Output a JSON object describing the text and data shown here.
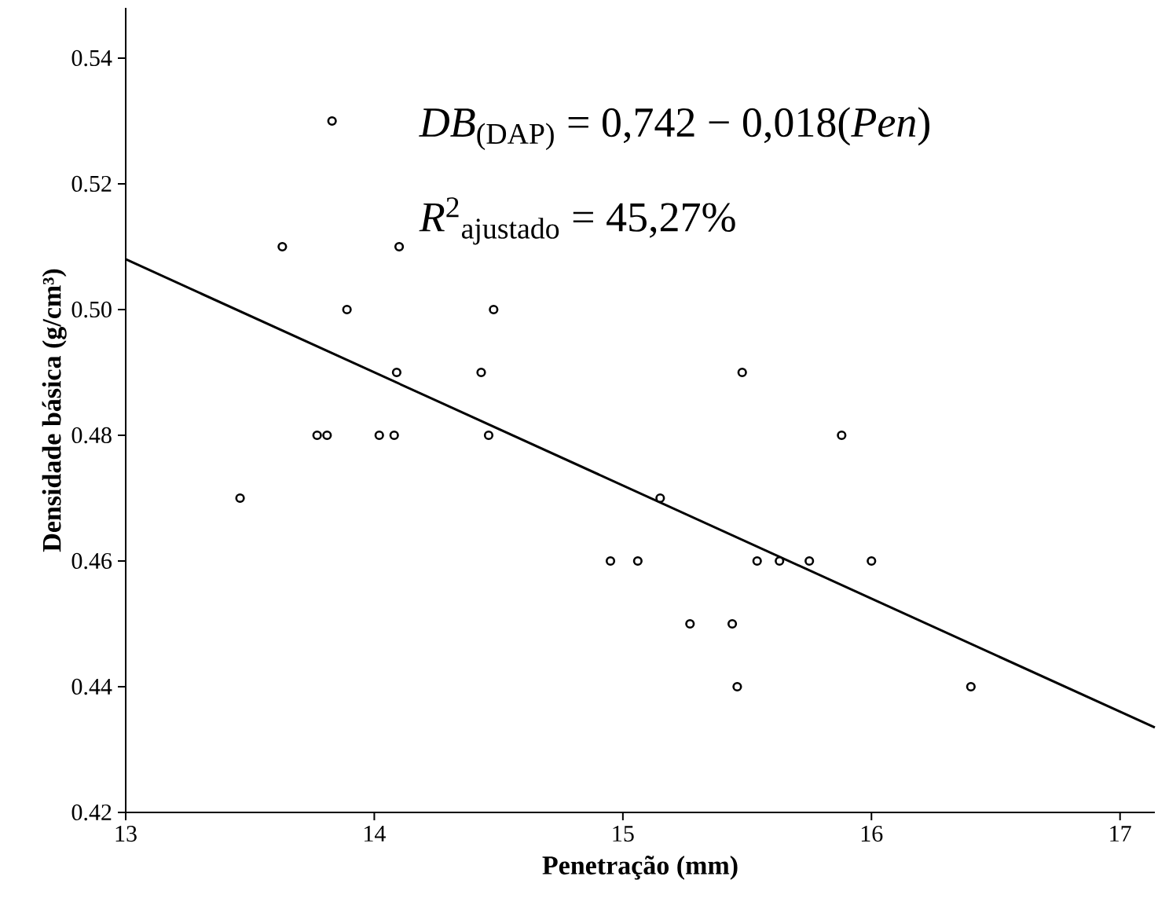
{
  "chart_data": {
    "type": "scatter",
    "xlabel": "Penetração (mm)",
    "ylabel": "Densidade básica (g/cm³)",
    "annotations": [
      "*DB*$_{(DAP)}$ = 0,742 − 0,018(*Pen*)",
      "*R*$^{2}$$_{ajustado}$ = 45,27%"
    ],
    "xlim": [
      13,
      17.14
    ],
    "ylim": [
      0.42,
      0.548
    ],
    "xticks": [
      13,
      14,
      15,
      16,
      17
    ],
    "yticks": [
      {
        "value": 0.42,
        "label": "0.42"
      },
      {
        "value": 0.44,
        "label": "0.44"
      },
      {
        "value": 0.46,
        "label": "0.46"
      },
      {
        "value": 0.48,
        "label": "0.48"
      },
      {
        "value": 0.5,
        "label": "0.50"
      },
      {
        "value": 0.52,
        "label": "0.52"
      },
      {
        "value": 0.54,
        "label": "0.54"
      }
    ],
    "grid": false,
    "series": [
      {
        "color": "#000000",
        "marker": "circle",
        "x": [
          13.83,
          13.63,
          14.1,
          13.89,
          14.48,
          14.09,
          14.43,
          13.77,
          13.81,
          14.02,
          14.08,
          14.46,
          13.46,
          14.95,
          15.48,
          15.88,
          15.15,
          15.06,
          15.54,
          15.63,
          15.75,
          16.0,
          15.27,
          15.44,
          15.46,
          16.4
        ],
        "values": [
          0.53,
          0.51,
          0.51,
          0.5,
          0.5,
          0.49,
          0.49,
          0.48,
          0.48,
          0.48,
          0.48,
          0.48,
          0.47,
          0.46,
          0.49,
          0.48,
          0.47,
          0.46,
          0.46,
          0.46,
          0.46,
          0.46,
          0.45,
          0.45,
          0.44,
          0.44
        ]
      },
      {
        "type": "line",
        "color": "#000000",
        "marker": "none",
        "line_style": "solid",
        "x": [
          13,
          17.14
        ],
        "values": [
          0.508,
          0.4335
        ]
      }
    ]
  }
}
